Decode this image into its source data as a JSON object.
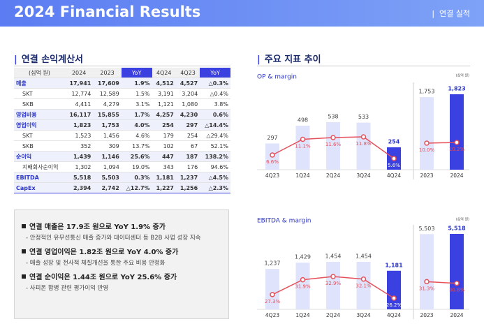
{
  "header": {
    "title": "2024 Financial Results",
    "section": "연결 실적"
  },
  "income_statement": {
    "title": "연결 손익계산서",
    "columns": [
      "(십억 원)",
      "2024",
      "2023",
      "YoY",
      "4Q24",
      "4Q23",
      "YoY"
    ],
    "rows": [
      {
        "main": true,
        "cells": [
          "매출",
          "17,941",
          "17,609",
          "1.9%",
          "4,512",
          "4,527",
          "△0.3%"
        ]
      },
      {
        "main": false,
        "cells": [
          "SKT",
          "12,774",
          "12,589",
          "1.5%",
          "3,191",
          "3,204",
          "△0.4%"
        ]
      },
      {
        "main": false,
        "cells": [
          "SKB",
          "4,411",
          "4,279",
          "3.1%",
          "1,121",
          "1,080",
          "3.8%"
        ]
      },
      {
        "main": true,
        "cells": [
          "영업비용",
          "16,117",
          "15,855",
          "1.7%",
          "4,257",
          "4,230",
          "0.6%"
        ]
      },
      {
        "main": true,
        "cells": [
          "영업이익",
          "1,823",
          "1,753",
          "4.0%",
          "254",
          "297",
          "△14.4%"
        ]
      },
      {
        "main": false,
        "cells": [
          "SKT",
          "1,523",
          "1,456",
          "4.6%",
          "179",
          "254",
          "△29.4%"
        ]
      },
      {
        "main": false,
        "cells": [
          "SKB",
          "352",
          "309",
          "13.7%",
          "102",
          "67",
          "52.1%"
        ]
      },
      {
        "main": true,
        "cells": [
          "순이익",
          "1,439",
          "1,146",
          "25.6%",
          "447",
          "187",
          "138.2%"
        ]
      },
      {
        "main": false,
        "cells": [
          "지배회사순이익",
          "1,302",
          "1,094",
          "19.0%",
          "343",
          "176",
          "94.6%"
        ]
      },
      {
        "main": true,
        "cells": [
          "EBITDA",
          "5,518",
          "5,503",
          "0.3%",
          "1,181",
          "1,237",
          "△4.5%"
        ]
      },
      {
        "main": true,
        "cells": [
          "CapEx",
          "2,394",
          "2,742",
          "△12.7%",
          "1,227",
          "1,256",
          "△2.3%"
        ]
      }
    ]
  },
  "summary": [
    {
      "headline": "연결 매출은 17.9조 원으로 YoY 1.9% 증가",
      "detail": "- 안정적인 유무선통신 매출 증가와 데이터센터 등 B2B 사업 성장 지속"
    },
    {
      "headline": "연결 영업이익은 1.82조 원으로 YoY 4.0% 증가",
      "detail": "- 매출 성장 및 전사적 체질개선을 통한 주요 비용 안정화"
    },
    {
      "headline": "연결 순이익은 1.44조 원으로 YoY 25.6% 증가",
      "detail": "- 사피온 합병 관련 평가이익 반영"
    }
  ],
  "indicators_title": "주요 지표 추이",
  "chart_data": [
    {
      "type": "bar-line",
      "title": "OP & margin",
      "unit": "(십억 원)",
      "groups": [
        {
          "categories": [
            "4Q23",
            "1Q24",
            "2Q24",
            "3Q24",
            "4Q24"
          ],
          "bars": {
            "values": [
              297,
              498,
              538,
              533,
              254
            ],
            "value_labels": [
              "297",
              "498",
              "538",
              "533",
              "254"
            ],
            "colors": [
              "#dfe3fb",
              "#dfe3fb",
              "#dfe3fb",
              "#dfe3fb",
              "#3b40e0"
            ]
          },
          "line": {
            "values": [
              6.6,
              11.1,
              11.6,
              11.8,
              5.6
            ],
            "value_labels": [
              "6.6%",
              "11.1%",
              "11.6%",
              "11.8%",
              "5.6%"
            ],
            "color": "#e5505b"
          }
        },
        {
          "categories": [
            "2023",
            "2024"
          ],
          "bars": {
            "values": [
              1753,
              1823
            ],
            "value_labels": [
              "1,753",
              "1,823"
            ],
            "colors": [
              "#dfe3fb",
              "#3b40e0"
            ]
          },
          "line": {
            "values": [
              10.0,
              10.2
            ],
            "value_labels": [
              "10.0%",
              "10.2%"
            ],
            "color": "#e5505b"
          }
        }
      ]
    },
    {
      "type": "bar-line",
      "title": "EBITDA & margin",
      "unit": "(십억 원)",
      "groups": [
        {
          "categories": [
            "4Q23",
            "1Q24",
            "2Q24",
            "3Q24",
            "4Q24"
          ],
          "bars": {
            "values": [
              1237,
              1429,
              1454,
              1454,
              1181
            ],
            "value_labels": [
              "1,237",
              "1,429",
              "1,454",
              "1,454",
              "1,181"
            ],
            "colors": [
              "#dfe3fb",
              "#dfe3fb",
              "#dfe3fb",
              "#dfe3fb",
              "#3b40e0"
            ]
          },
          "line": {
            "values": [
              27.3,
              31.9,
              32.9,
              32.1,
              26.2
            ],
            "value_labels": [
              "27.3%",
              "31.9%",
              "32.9%",
              "32.1%",
              "26.2%"
            ],
            "color": "#e5505b"
          }
        },
        {
          "categories": [
            "2023",
            "2024"
          ],
          "bars": {
            "values": [
              5503,
              5518
            ],
            "value_labels": [
              "5,503",
              "5,518"
            ],
            "colors": [
              "#dfe3fb",
              "#3b40e0"
            ]
          },
          "line": {
            "values": [
              31.3,
              30.8
            ],
            "value_labels": [
              "31.3%",
              "30.8%"
            ],
            "color": "#e5505b"
          }
        }
      ]
    }
  ]
}
